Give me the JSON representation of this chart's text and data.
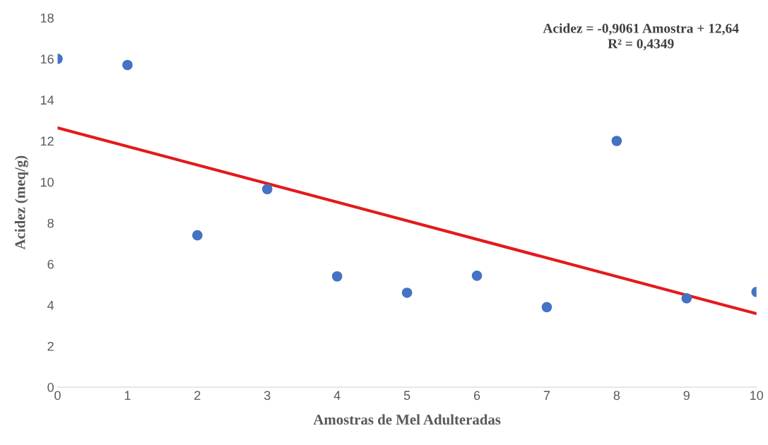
{
  "chart_data": {
    "type": "scatter",
    "xlabel": "Amostras de Mel Adulteradas",
    "ylabel": "Acidez (meq/g)",
    "annotations": [
      "Acidez = -0,9061 Amostra + 12,64",
      "R² = 0,4349"
    ],
    "series": [
      {
        "color": "#4472c4",
        "marker": "circle",
        "x": [
          0,
          1,
          2,
          3,
          4,
          5,
          6,
          7,
          8,
          9,
          10
        ],
        "values": [
          16.0,
          15.7,
          7.4,
          9.65,
          5.4,
          4.6,
          5.43,
          3.9,
          12.0,
          4.33,
          4.64
        ]
      },
      {
        "type": "line",
        "color": "#e31a1c",
        "x": [
          0,
          10
        ],
        "values": [
          12.64,
          3.58
        ]
      }
    ],
    "grid": false,
    "xlim": [
      0,
      10
    ],
    "xticks": [
      0,
      1,
      2,
      3,
      4,
      5,
      6,
      7,
      8,
      9,
      10
    ],
    "ylim": [
      0,
      18
    ],
    "yticks": [
      0,
      2,
      4,
      6,
      8,
      10,
      12,
      14,
      16,
      18
    ]
  }
}
